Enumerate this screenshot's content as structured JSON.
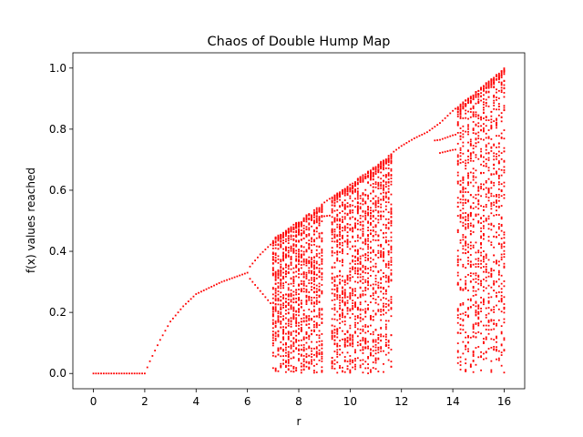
{
  "chart_data": {
    "type": "scatter",
    "title": "Chaos of Double Hump Map",
    "xlabel": "r",
    "ylabel": "f(x) values reached",
    "xlim": [
      -0.8,
      16.8
    ],
    "ylim": [
      -0.05,
      1.05
    ],
    "x_ticks": [
      0,
      2,
      4,
      6,
      8,
      10,
      12,
      14,
      16
    ],
    "y_ticks": [
      0.0,
      0.2,
      0.4,
      0.6,
      0.8,
      1.0
    ],
    "x_tick_labels": [
      "0",
      "2",
      "4",
      "6",
      "8",
      "10",
      "12",
      "14",
      "16"
    ],
    "y_tick_labels": [
      "0.0",
      "0.2",
      "0.4",
      "0.6",
      "0.8",
      "1.0"
    ],
    "grid": false,
    "marker_color": "#ff0000",
    "series": [
      {
        "r_range": [
          0,
          16
        ],
        "r_step": 0.1,
        "fixed_point_branch": [
          [
            0.0,
            0.0
          ],
          [
            2.0,
            0.0
          ],
          [
            2.2,
            0.04
          ],
          [
            2.6,
            0.11
          ],
          [
            3.0,
            0.17
          ],
          [
            3.5,
            0.22
          ],
          [
            4.0,
            0.26
          ],
          [
            4.5,
            0.28
          ],
          [
            5.0,
            0.3
          ],
          [
            5.5,
            0.315
          ],
          [
            6.0,
            0.33
          ]
        ],
        "period2_upper": [
          [
            6.1,
            0.35
          ],
          [
            6.5,
            0.39
          ],
          [
            7.0,
            0.43
          ]
        ],
        "period2_lower": [
          [
            6.1,
            0.31
          ],
          [
            6.5,
            0.27
          ],
          [
            7.0,
            0.22
          ]
        ],
        "chaos_bands": [
          {
            "r": [
              7.0,
              8.2
            ],
            "min": 0.0,
            "max": 0.51
          },
          {
            "r": [
              8.3,
              8.9
            ],
            "min": 0.0,
            "max": 0.55
          },
          {
            "r": [
              9.3,
              11.6
            ],
            "min": 0.0,
            "max": 0.72
          },
          {
            "r": [
              14.2,
              16.0
            ],
            "min": 0.0,
            "max": 1.0
          }
        ],
        "windows": [
          {
            "r": [
              8.9,
              9.3
            ],
            "values": [
              0.55,
              0.56
            ]
          },
          {
            "r": [
              11.6,
              13.2
            ],
            "values": "upper-edge"
          },
          {
            "r": [
              13.2,
              14.2
            ],
            "values": [
              0.84,
              0.78,
              0.72
            ]
          }
        ],
        "upper_edge": [
          [
            7.0,
            0.44
          ],
          [
            8.0,
            0.5
          ],
          [
            9.0,
            0.56
          ],
          [
            10.0,
            0.62
          ],
          [
            11.0,
            0.68
          ],
          [
            11.6,
            0.72
          ],
          [
            12.0,
            0.745
          ],
          [
            12.5,
            0.77
          ],
          [
            13.0,
            0.79
          ],
          [
            13.5,
            0.82
          ],
          [
            14.0,
            0.86
          ],
          [
            15.0,
            0.93
          ],
          [
            16.0,
            1.0
          ]
        ]
      }
    ]
  }
}
